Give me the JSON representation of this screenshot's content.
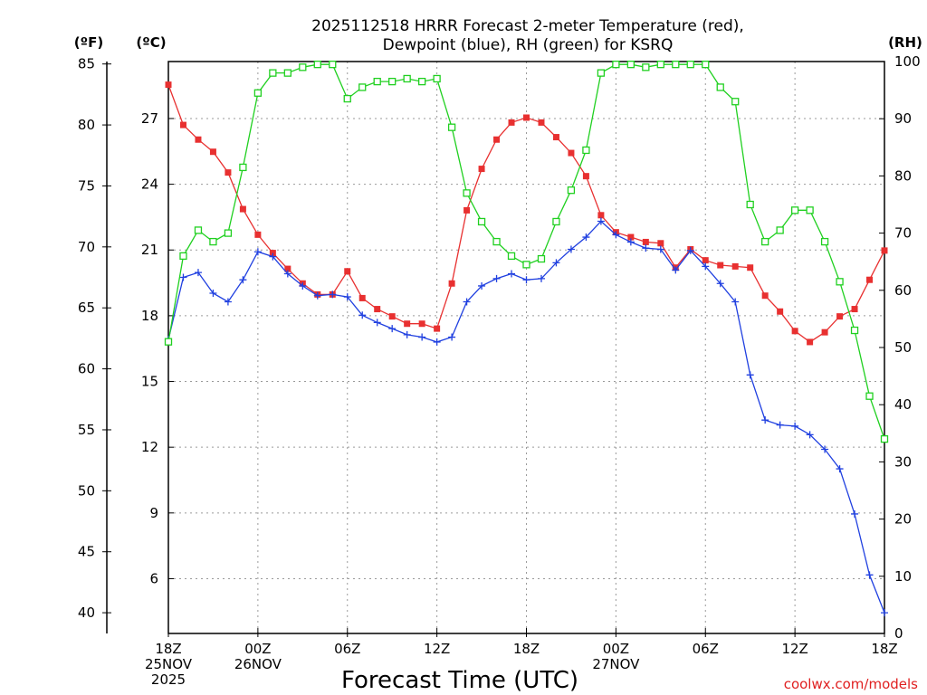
{
  "chart_data": {
    "type": "line",
    "title_line1": "2025112518 HRRR Forecast 2-meter Temperature (red),",
    "title_line2": "Dewpoint (blue), RH (green) for KSRQ",
    "unit_f": "(ºF)",
    "unit_c": "(ºC)",
    "unit_rh": "(RH)",
    "xlabel": "Forecast Time (UTC)",
    "credit": "coolwx.com/models",
    "x_hours": [
      0,
      1,
      2,
      3,
      4,
      5,
      6,
      7,
      8,
      9,
      10,
      11,
      12,
      13,
      14,
      15,
      16,
      17,
      18,
      19,
      20,
      21,
      22,
      23,
      24,
      25,
      26,
      27,
      28,
      29,
      30,
      31,
      32,
      33,
      34,
      35,
      36,
      37,
      38,
      39,
      40,
      41,
      42,
      43,
      44,
      45,
      46,
      47,
      48
    ],
    "xlim": [
      0,
      48
    ],
    "x_ticks": [
      {
        "hour": 0,
        "lines": [
          "18Z",
          "25NOV",
          "2025"
        ]
      },
      {
        "hour": 6,
        "lines": [
          "00Z",
          "26NOV"
        ]
      },
      {
        "hour": 12,
        "lines": [
          "06Z"
        ]
      },
      {
        "hour": 18,
        "lines": [
          "12Z"
        ]
      },
      {
        "hour": 24,
        "lines": [
          "18Z"
        ]
      },
      {
        "hour": 30,
        "lines": [
          "00Z",
          "27NOV"
        ]
      },
      {
        "hour": 36,
        "lines": [
          "06Z"
        ]
      },
      {
        "hour": 42,
        "lines": [
          "12Z"
        ]
      },
      {
        "hour": 48,
        "lines": [
          "18Z"
        ]
      }
    ],
    "f_axis": {
      "ylim": [
        38.3,
        85.2
      ],
      "ticks": [
        "40",
        "45",
        "50",
        "55",
        "60",
        "65",
        "70",
        "75",
        "80",
        "85"
      ]
    },
    "c_axis": {
      "ylim": [
        3.5,
        29.6
      ],
      "ticks": [
        "6",
        "9",
        "12",
        "15",
        "18",
        "21",
        "24",
        "27"
      ]
    },
    "rh_axis": {
      "ylim": [
        0,
        100
      ],
      "ticks": [
        "0",
        "10",
        "20",
        "30",
        "40",
        "50",
        "60",
        "70",
        "80",
        "90",
        "100"
      ]
    },
    "series": [
      {
        "name": "Temperature",
        "axis": "f",
        "color": "#e83030",
        "marker": "filled-square",
        "values": [
          83.3,
          80.0,
          78.8,
          77.8,
          76.1,
          73.1,
          71.0,
          69.5,
          68.2,
          67.0,
          66.1,
          66.1,
          68.0,
          65.8,
          64.9,
          64.3,
          63.7,
          63.7,
          63.3,
          67.0,
          73.0,
          76.4,
          78.8,
          80.2,
          80.6,
          80.2,
          79.0,
          77.7,
          75.8,
          72.6,
          71.2,
          70.8,
          70.4,
          70.3,
          68.3,
          69.8,
          68.9,
          68.5,
          68.4,
          68.3,
          66.0,
          64.7,
          63.1,
          62.2,
          63.0,
          64.3,
          64.9,
          67.3,
          69.7
        ]
      },
      {
        "name": "Dewpoint",
        "axis": "f",
        "color": "#2040e0",
        "marker": "plus",
        "values": [
          62.4,
          67.5,
          67.9,
          66.2,
          65.5,
          67.3,
          69.6,
          69.2,
          67.8,
          66.8,
          66.0,
          66.1,
          65.9,
          64.4,
          63.8,
          63.3,
          62.8,
          62.6,
          62.2,
          62.6,
          65.5,
          66.8,
          67.4,
          67.8,
          67.3,
          67.4,
          68.7,
          69.8,
          70.8,
          72.1,
          71.0,
          70.4,
          69.9,
          69.8,
          68.1,
          69.7,
          68.4,
          67.0,
          65.5,
          59.5,
          55.8,
          55.4,
          55.3,
          54.6,
          53.4,
          51.8,
          48.1,
          43.1,
          40.0
        ]
      },
      {
        "name": "RH",
        "axis": "rh",
        "color": "#20d020",
        "marker": "open-square",
        "values": [
          51,
          66,
          70.5,
          68.5,
          70,
          81.5,
          94.5,
          98,
          98,
          99,
          99.5,
          99.5,
          93.5,
          95.5,
          96.5,
          96.5,
          97,
          96.5,
          97,
          88.5,
          77,
          72,
          68.5,
          66,
          64.5,
          65.5,
          72,
          77.5,
          84.5,
          98,
          99.5,
          99.5,
          99,
          99.5,
          99.5,
          99.5,
          99.5,
          95.5,
          93,
          75,
          68.5,
          70.5,
          74,
          74,
          68.5,
          61.5,
          53,
          41.5,
          34
        ]
      }
    ]
  }
}
